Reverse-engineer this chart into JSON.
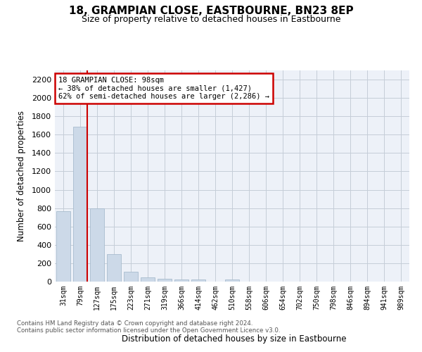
{
  "title": "18, GRAMPIAN CLOSE, EASTBOURNE, BN23 8EP",
  "subtitle": "Size of property relative to detached houses in Eastbourne",
  "xlabel": "Distribution of detached houses by size in Eastbourne",
  "ylabel": "Number of detached properties",
  "categories": [
    "31sqm",
    "79sqm",
    "127sqm",
    "175sqm",
    "223sqm",
    "271sqm",
    "319sqm",
    "366sqm",
    "414sqm",
    "462sqm",
    "510sqm",
    "558sqm",
    "606sqm",
    "654sqm",
    "702sqm",
    "750sqm",
    "798sqm",
    "846sqm",
    "894sqm",
    "941sqm",
    "989sqm"
  ],
  "values": [
    770,
    1690,
    795,
    300,
    110,
    45,
    32,
    25,
    22,
    0,
    22,
    0,
    0,
    0,
    0,
    0,
    0,
    0,
    0,
    0,
    0
  ],
  "bar_color": "#ccd9e8",
  "bar_edge_color": "#a8bcce",
  "ref_line_idx": 1,
  "ref_line_color": "#cc0000",
  "annotation_lines": [
    "18 GRAMPIAN CLOSE: 98sqm",
    "← 38% of detached houses are smaller (1,427)",
    "62% of semi-detached houses are larger (2,286) →"
  ],
  "annotation_box_edgecolor": "#cc0000",
  "ylim": [
    0,
    2300
  ],
  "yticks": [
    0,
    200,
    400,
    600,
    800,
    1000,
    1200,
    1400,
    1600,
    1800,
    2000,
    2200
  ],
  "grid_color": "#c5cdd8",
  "bg_color": "#edf1f8",
  "footer1": "Contains HM Land Registry data © Crown copyright and database right 2024.",
  "footer2": "Contains public sector information licensed under the Open Government Licence v3.0."
}
